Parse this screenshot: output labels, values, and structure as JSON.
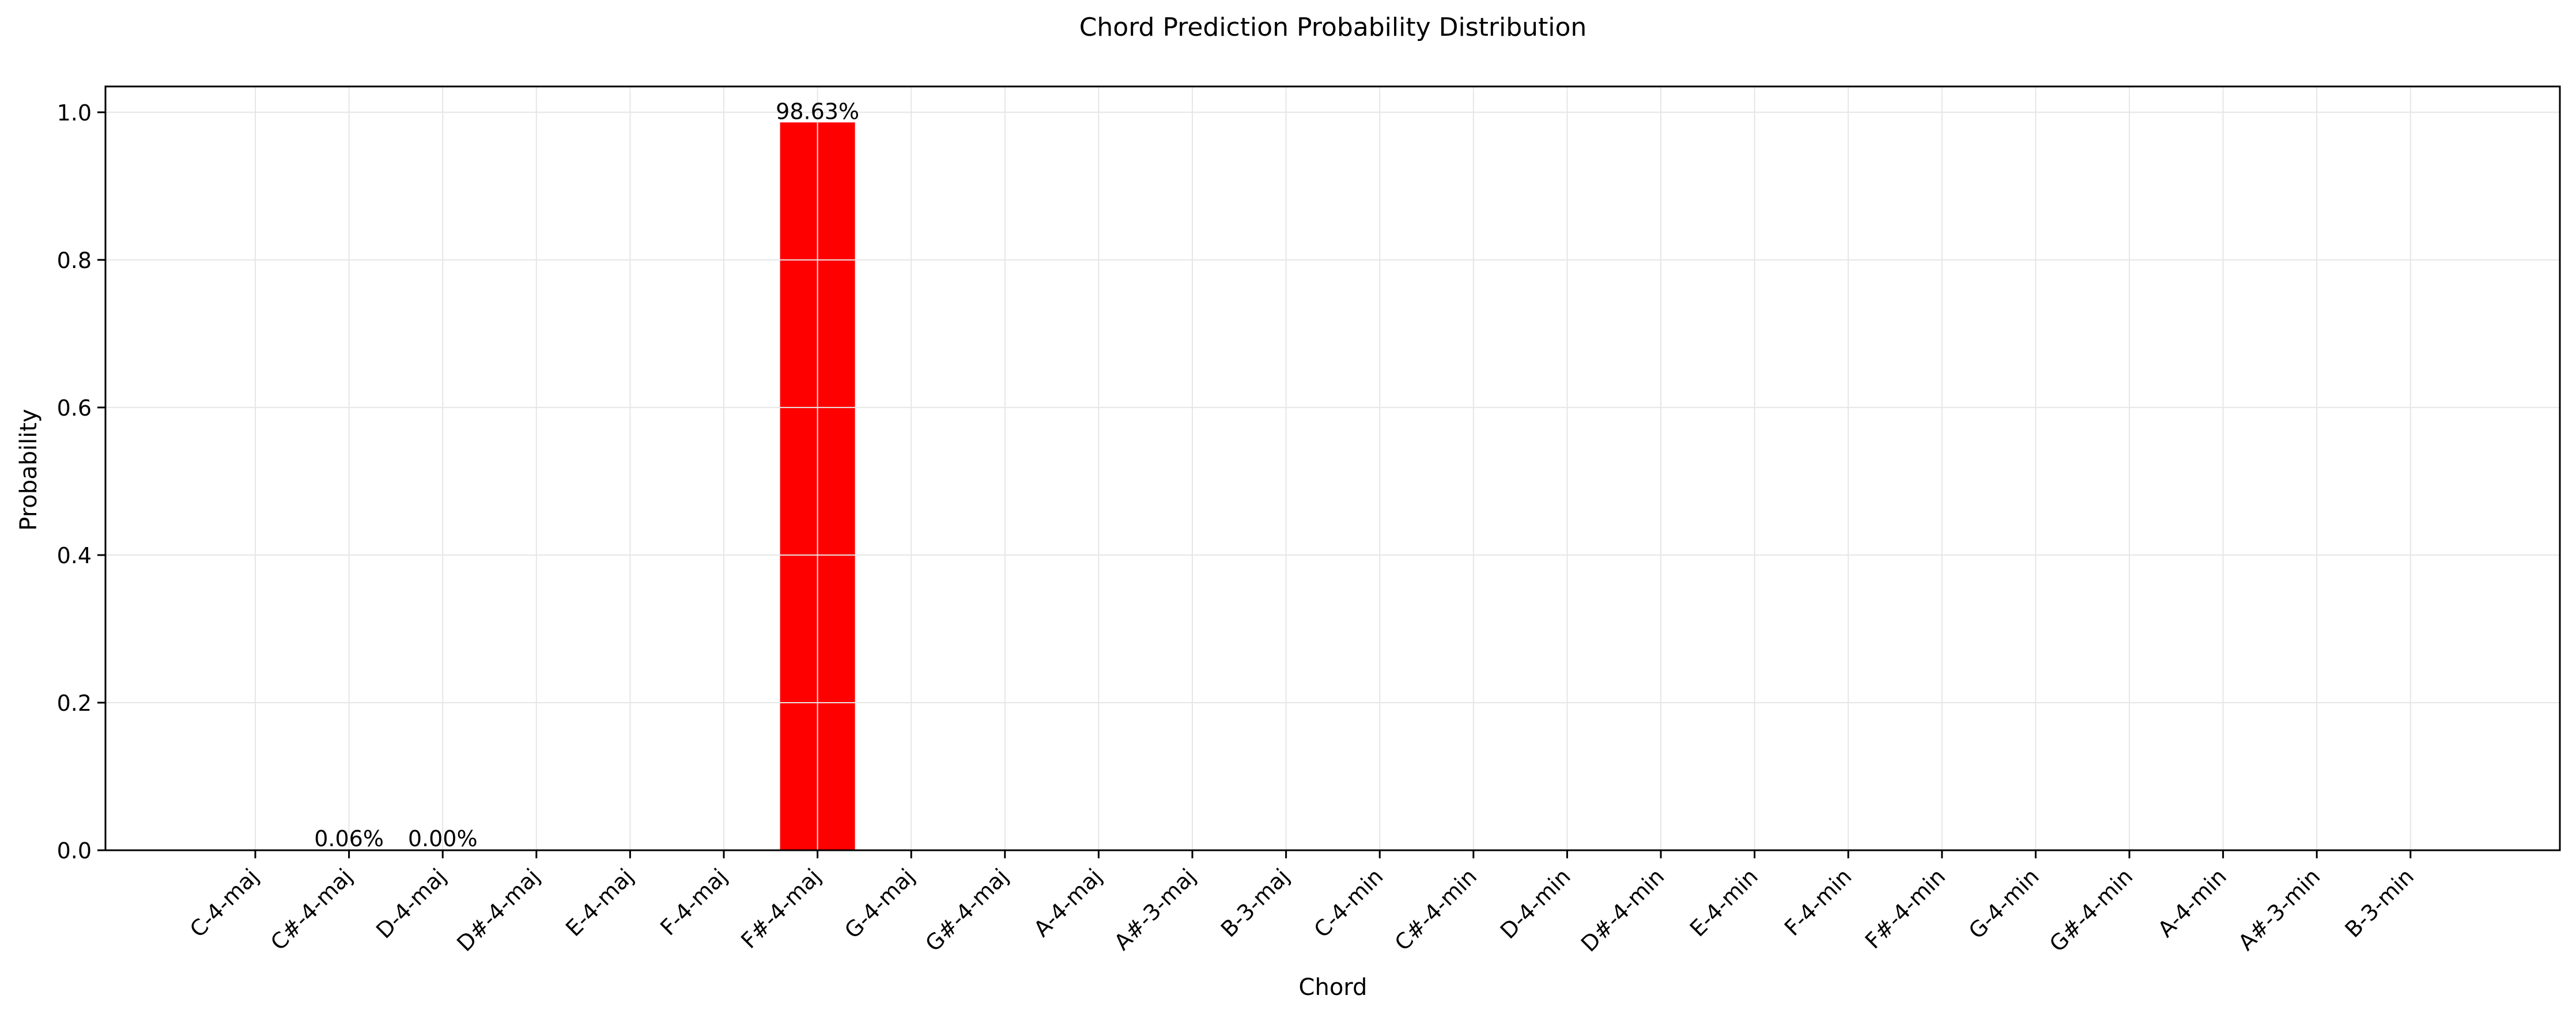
{
  "chart_data": {
    "type": "bar",
    "title": "Chord Prediction Probability Distribution",
    "xlabel": "Chord",
    "ylabel": "Probability",
    "ylim": [
      0,
      1.035
    ],
    "yticks": [
      0.0,
      0.2,
      0.4,
      0.6,
      0.8,
      1.0
    ],
    "ytick_labels": [
      "0.0",
      "0.2",
      "0.4",
      "0.6",
      "0.8",
      "1.0"
    ],
    "grid": true,
    "bar_color": "#ff0000",
    "categories": [
      "C-4-maj",
      "C#-4-maj",
      "D-4-maj",
      "D#-4-maj",
      "E-4-maj",
      "F-4-maj",
      "F#-4-maj",
      "G-4-maj",
      "G#-4-maj",
      "A-4-maj",
      "A#-3-maj",
      "B-3-maj",
      "C-4-min",
      "C#-4-min",
      "D-4-min",
      "D#-4-min",
      "E-4-min",
      "F-4-min",
      "F#-4-min",
      "G-4-min",
      "G#-4-min",
      "A-4-min",
      "A#-3-min",
      "B-3-min"
    ],
    "bars": [
      {
        "category": "C#-4-maj",
        "value": 0.0006,
        "label": "0.06%"
      },
      {
        "category": "D-4-maj",
        "value": 0.0,
        "label": "0.00%"
      },
      {
        "category": "F#-4-maj",
        "value": 0.9863,
        "label": "98.63%"
      }
    ]
  }
}
